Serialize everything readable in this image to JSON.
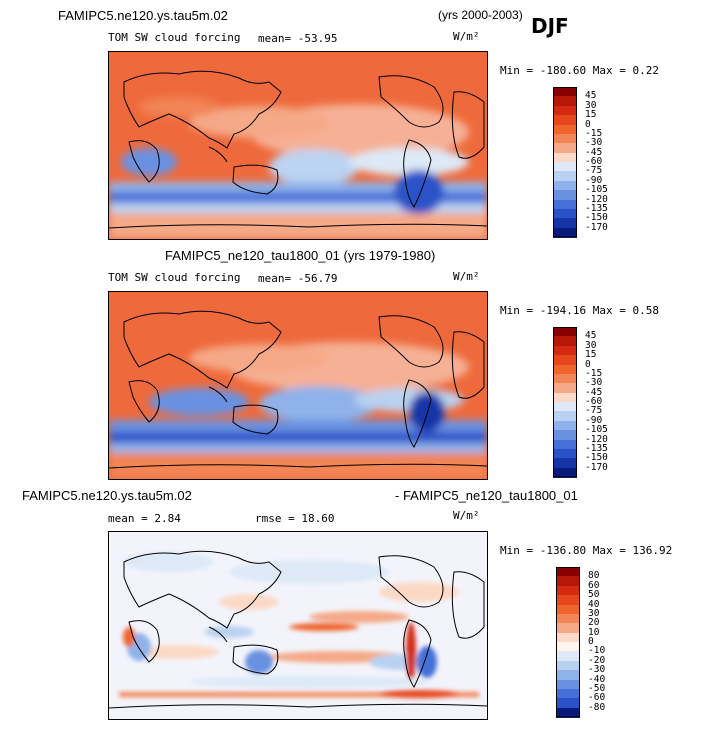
{
  "season": "DJF",
  "panels": [
    {
      "title": "FAMIPC5.ne120.ys.tau5m.02",
      "years": "(yrs 2000-2003)",
      "variable": "TOM SW cloud forcing",
      "stat": "mean=  -53.95",
      "units": "W/m²",
      "minmax": "Min = -180.60 Max =   0.22",
      "levels": [
        "45",
        "30",
        "15",
        "0",
        "-15",
        "-30",
        "-45",
        "-60",
        "-75",
        "-90",
        "-105",
        "-120",
        "-135",
        "-150",
        "-170"
      ]
    },
    {
      "title": "FAMIPC5_ne120_tau1800_01 (yrs 1979-1980)",
      "variable": "TOM SW cloud forcing",
      "stat": "mean=  -56.79",
      "units": "W/m²",
      "minmax": "Min = -194.16 Max =   0.58",
      "levels": [
        "45",
        "30",
        "15",
        "0",
        "-15",
        "-30",
        "-45",
        "-60",
        "-75",
        "-90",
        "-105",
        "-120",
        "-135",
        "-150",
        "-170"
      ]
    },
    {
      "title_left": "FAMIPC5.ne120.ys.tau5m.02",
      "title_right": "- FAMIPC5_ne120_tau1800_01",
      "mean": "mean =    2.84",
      "rmse": "rmse =   18.60",
      "units": "W/m²",
      "minmax": "Min = -136.80 Max = 136.92",
      "levels": [
        "80",
        "60",
        "50",
        "40",
        "30",
        "20",
        "10",
        "0",
        "-10",
        "-20",
        "-30",
        "-40",
        "-50",
        "-60",
        "-80"
      ]
    }
  ],
  "colors": {
    "cf": [
      "#8a0000",
      "#b81608",
      "#d42a12",
      "#e8461f",
      "#f0652e",
      "#f28455",
      "#f5a987",
      "#fbd9c6",
      "#dde9f7",
      "#b9d1f1",
      "#8fb2ea",
      "#6a91e1",
      "#4570d8",
      "#2a52c8",
      "#1634a8",
      "#081a7c"
    ],
    "diff": [
      "#8a0000",
      "#b81608",
      "#d42a12",
      "#e8461f",
      "#f0652e",
      "#f28455",
      "#f5a987",
      "#fbd9c6",
      "#fff5ec",
      "#dde9f7",
      "#b9d1f1",
      "#8fb2ea",
      "#6a91e1",
      "#4570d8",
      "#2a52c8",
      "#081a7c"
    ]
  }
}
